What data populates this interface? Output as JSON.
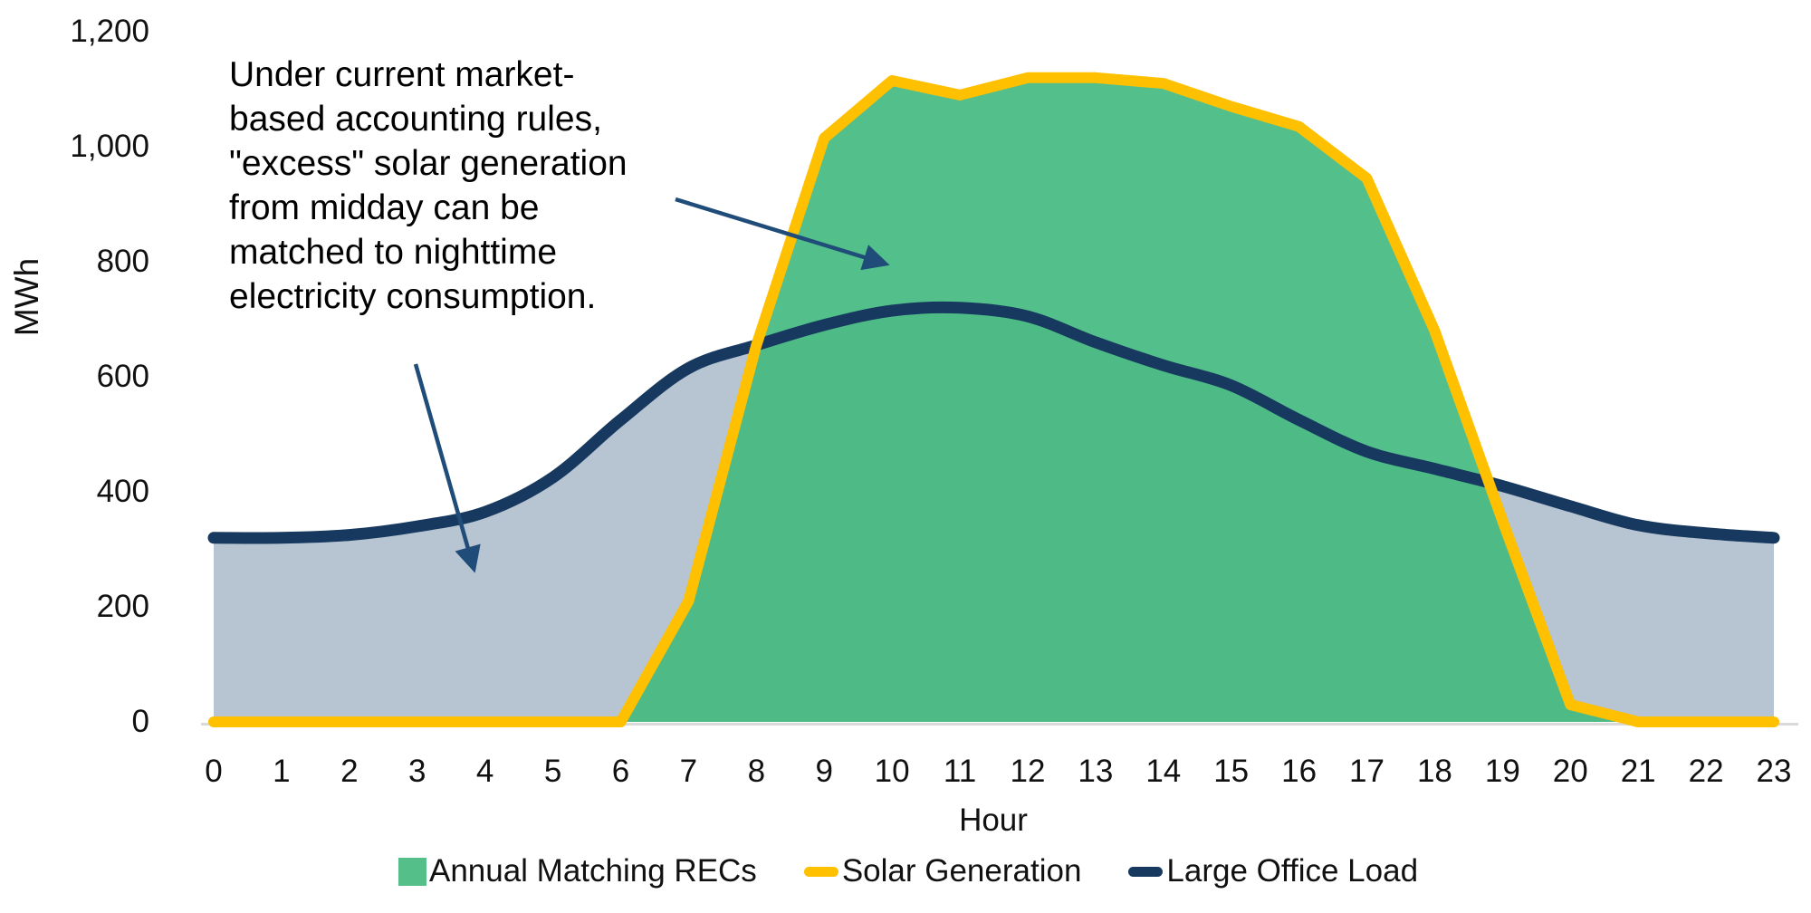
{
  "chart_data": {
    "type": "area",
    "title": "",
    "xlabel": "Hour",
    "ylabel": "MWh",
    "x": [
      0,
      1,
      2,
      3,
      4,
      5,
      6,
      7,
      8,
      9,
      10,
      11,
      12,
      13,
      14,
      15,
      16,
      17,
      18,
      19,
      20,
      21,
      22,
      23
    ],
    "x_tick_labels": [
      "0",
      "1",
      "2",
      "3",
      "4",
      "5",
      "6",
      "7",
      "8",
      "9",
      "10",
      "11",
      "12",
      "13",
      "14",
      "15",
      "16",
      "17",
      "18",
      "19",
      "20",
      "21",
      "22",
      "23"
    ],
    "ylim": [
      0,
      1200
    ],
    "y_ticks": [
      {
        "value": 0,
        "label": "0"
      },
      {
        "value": 200,
        "label": "200"
      },
      {
        "value": 400,
        "label": "400"
      },
      {
        "value": 600,
        "label": "600"
      },
      {
        "value": 800,
        "label": "800"
      },
      {
        "value": 1000,
        "label": "1,000"
      },
      {
        "value": 1200,
        "label": "1,200"
      }
    ],
    "grid": false,
    "legend_position": "bottom",
    "series": [
      {
        "name": "Annual Matching RECs",
        "type": "area",
        "marker": "square",
        "color": "#46BA81",
        "note": "green fill under the Solar Generation curve",
        "values": [
          0,
          0,
          0,
          0,
          0,
          0,
          0,
          210,
          655,
          1015,
          1115,
          1090,
          1120,
          1120,
          1110,
          1070,
          1035,
          945,
          680,
          350,
          30,
          0,
          0,
          0
        ]
      },
      {
        "name": "Solar Generation",
        "type": "line",
        "marker": "dash",
        "color": "#FFC000",
        "smooth": false,
        "values": [
          0,
          0,
          0,
          0,
          0,
          0,
          0,
          210,
          655,
          1015,
          1115,
          1090,
          1120,
          1120,
          1110,
          1070,
          1035,
          945,
          680,
          350,
          30,
          0,
          0,
          0
        ]
      },
      {
        "name": "Large Office Load",
        "type": "line",
        "marker": "dash",
        "color": "#17395F",
        "smooth": true,
        "night_area_color": "#B7C4D2",
        "note": "grey-blue fill under this curve, visible where load exceeds solar",
        "values": [
          320,
          320,
          325,
          340,
          365,
          425,
          525,
          615,
          655,
          690,
          715,
          720,
          705,
          660,
          620,
          585,
          525,
          470,
          440,
          410,
          375,
          342,
          328,
          320
        ]
      }
    ],
    "axis_line_color": "#D9D9D9"
  },
  "annotation": {
    "text": "Under current market-\nbased accounting rules,\n\"excess\" solar generation\nfrom midday can be\nmatched to nighttime\nelectricity consumption.",
    "arrow_color": "#1F4C78",
    "arrows": [
      {
        "from": [
          746,
          220
        ],
        "to": [
          977,
          291
        ],
        "points_to": "green midday excess area"
      },
      {
        "from": [
          459,
          402
        ],
        "to": [
          523,
          627
        ],
        "points_to": "grey nighttime consumption area"
      }
    ]
  },
  "legend": {
    "items": [
      {
        "label": "Annual Matching RECs",
        "swatch": "square",
        "color": "#55BF8A"
      },
      {
        "label": "Solar Generation",
        "swatch": "dash",
        "color": "#FFC000"
      },
      {
        "label": "Large Office Load",
        "swatch": "dash",
        "color": "#17395F"
      }
    ]
  }
}
